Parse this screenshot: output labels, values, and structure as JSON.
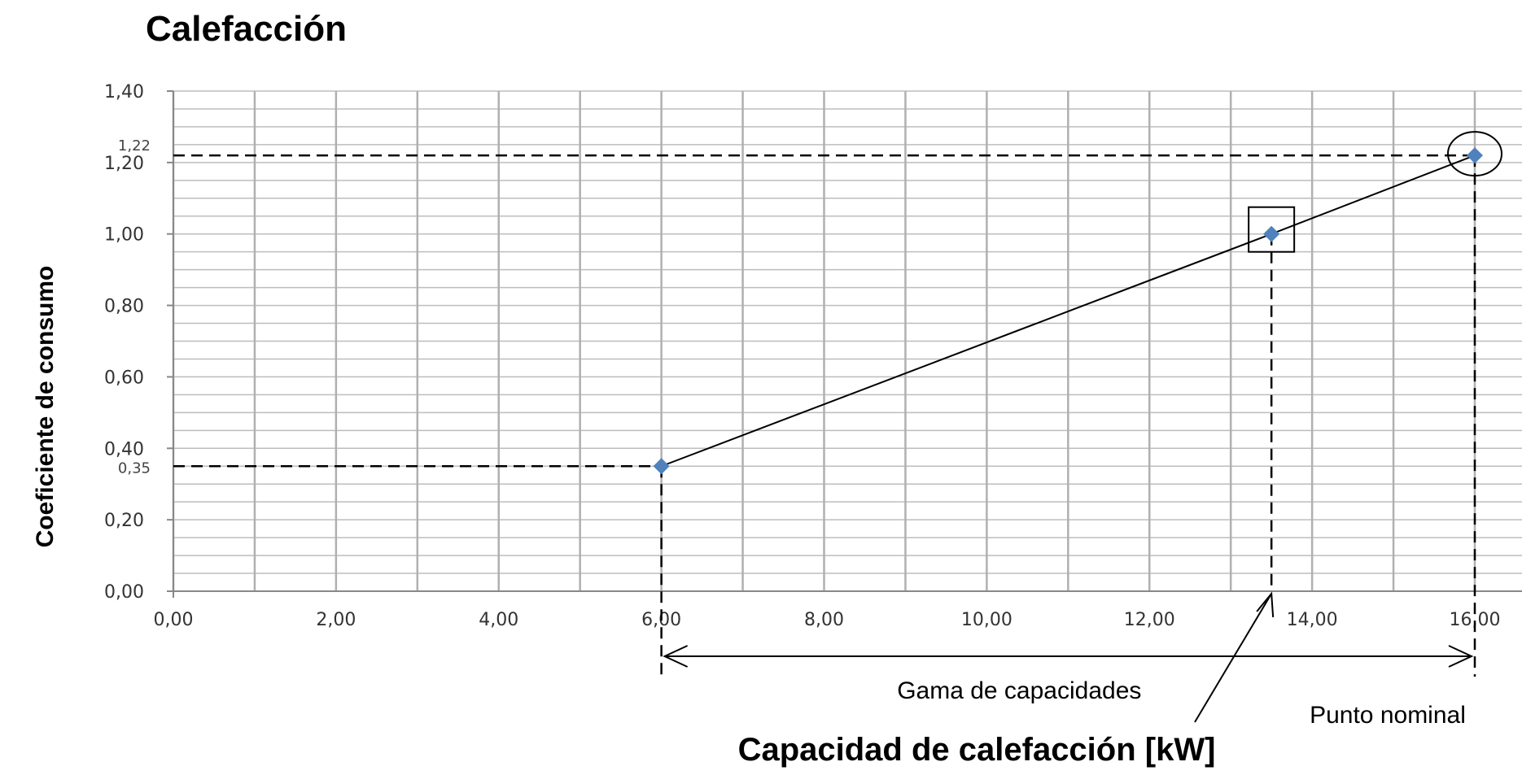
{
  "chart_data": {
    "type": "line",
    "title": "Calefacción",
    "xlabel": "Capacidad de calefacción [kW]",
    "ylabel": "Coeficiente de consumo",
    "xlim": [
      0,
      16
    ],
    "ylim": [
      0,
      1.4
    ],
    "x_ticks": [
      "0,00",
      "2,00",
      "4,00",
      "6,00",
      "8,00",
      "10,00",
      "12,00",
      "14,00",
      "16,00"
    ],
    "y_ticks": [
      "0,00",
      "0,20",
      "0,40",
      "0,60",
      "0,80",
      "1,00",
      "1,20",
      "1,40"
    ],
    "x_tick_values": [
      0,
      2,
      4,
      6,
      8,
      10,
      12,
      14,
      16
    ],
    "y_tick_values": [
      0,
      0.2,
      0.4,
      0.6,
      0.8,
      1.0,
      1.2,
      1.4
    ],
    "grid": true,
    "series": [
      {
        "x": [
          6.0,
          13.5,
          16.0
        ],
        "y": [
          0.35,
          1.0,
          1.22
        ],
        "color": "#4f81bd"
      }
    ],
    "annotations": {
      "min_value_label": "0,35",
      "max_value_label": "1,22",
      "range_label": "Gama de capacidades",
      "nominal_label": "Punto nominal"
    }
  }
}
